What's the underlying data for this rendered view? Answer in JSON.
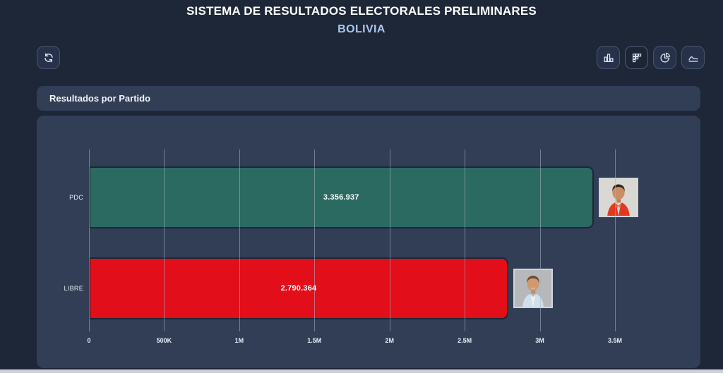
{
  "app": {
    "title": "SISTEMA DE RESULTADOS ELECTORALES PRELIMINARES",
    "subtitle": "BOLIVIA"
  },
  "toolbar": {
    "refresh_button": {
      "icon": "refresh-icon"
    },
    "chart_type_buttons": [
      {
        "id": "column-chart",
        "icon": "column-chart-icon",
        "active": false
      },
      {
        "id": "grid-chart",
        "icon": "grid-chart-icon",
        "active": true
      },
      {
        "id": "pie-chart",
        "icon": "pie-chart-icon",
        "active": false
      },
      {
        "id": "area-chart",
        "icon": "area-chart-icon",
        "active": false
      }
    ]
  },
  "panel": {
    "title": "Resultados por Partido"
  },
  "chart_data": {
    "type": "bar",
    "orientation": "horizontal",
    "title": "Resultados por Partido",
    "categories": [
      "PDC",
      "LIBRE"
    ],
    "values": [
      3356937,
      2790364
    ],
    "value_labels": [
      "3.356.937",
      "2.790.364"
    ],
    "bar_colors": [
      "#2b6a61",
      "#e20e19"
    ],
    "x_tick_labels": [
      "0",
      "500K",
      "1M",
      "1.5M",
      "2M",
      "2.5M",
      "3M",
      "3.5M"
    ],
    "x_tick_values": [
      0,
      500000,
      1000000,
      1500000,
      2000000,
      2500000,
      3000000,
      3500000
    ],
    "xlim": [
      0,
      3500000
    ],
    "grid": true,
    "legend": false,
    "bar_end_photos": [
      "pdc-candidate-photo",
      "libre-candidate-photo"
    ]
  },
  "colors": {
    "page_background": "#1e2737",
    "panel_background": "#313e56",
    "subtitle_accent": "#a9c7f0",
    "bar_pdc": "#2b6a61",
    "bar_libre": "#e20e19",
    "gridline": "#a9b4c5"
  }
}
